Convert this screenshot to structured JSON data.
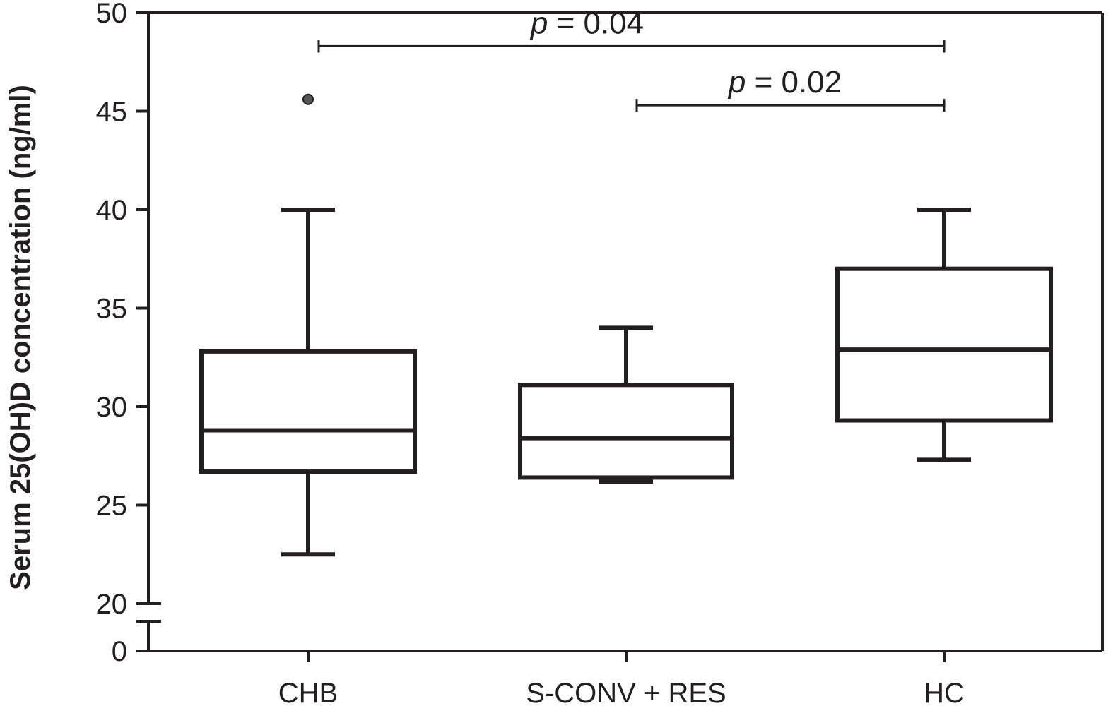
{
  "chart_data": {
    "type": "box",
    "ylabel": "Serum 25(OH)D concentration (ng/ml)",
    "xlabel": "",
    "title": "",
    "y_axis": {
      "broken": true,
      "break_between": [
        0,
        20
      ],
      "ticks_lower": [
        "0"
      ],
      "ticks_upper": [
        "20",
        "25",
        "30",
        "35",
        "40",
        "45",
        "50"
      ],
      "range_upper": [
        20,
        50
      ]
    },
    "categories": [
      "CHB",
      "S-CONV + RES",
      "HC"
    ],
    "boxes": [
      {
        "name": "CHB",
        "whisker_low": 22.5,
        "q1": 26.7,
        "median": 28.8,
        "q3": 32.8,
        "whisker_high": 40.0,
        "outliers": [
          45.6
        ]
      },
      {
        "name": "S-CONV + RES",
        "whisker_low": 26.2,
        "q1": 26.4,
        "median": 28.4,
        "q3": 31.1,
        "whisker_high": 34.0,
        "outliers": []
      },
      {
        "name": "HC",
        "whisker_low": 27.3,
        "q1": 29.3,
        "median": 32.9,
        "q3": 37.0,
        "whisker_high": 40.0,
        "outliers": []
      }
    ],
    "annotations": [
      {
        "from": "CHB",
        "to": "HC",
        "level": 48.3,
        "p_symbol": "p",
        "p_rest": " = 0.04"
      },
      {
        "from": "S-CONV + RES",
        "to": "HC",
        "level": 45.3,
        "p_symbol": "p",
        "p_rest": " = 0.02"
      }
    ],
    "grid": false,
    "legend": "none",
    "colors": {
      "stroke": "#231f20",
      "outlier": "#555555",
      "background": "#ffffff"
    }
  }
}
